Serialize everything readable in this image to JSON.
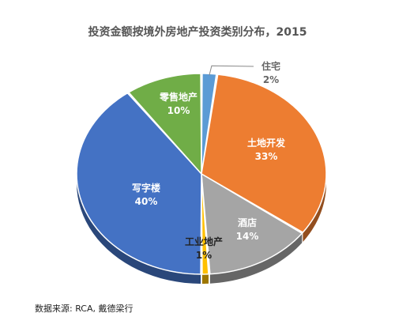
{
  "chart_data": {
    "type": "pie",
    "title": "投资金额按境外房地产投资类别分布，2015",
    "source": "数据来源: RCA, 戴德梁行",
    "slices": [
      {
        "label": "住宅",
        "value": 2,
        "value_label": "2%",
        "color": "#5b9bd5"
      },
      {
        "label": "土地开发",
        "value": 33,
        "value_label": "33%",
        "color": "#ed7d31"
      },
      {
        "label": "酒店",
        "value": 14,
        "value_label": "14%",
        "color": "#a5a5a5"
      },
      {
        "label": "工业地产",
        "value": 1,
        "value_label": "1%",
        "color": "#ffc000"
      },
      {
        "label": "写字楼",
        "value": 40,
        "value_label": "40%",
        "color": "#4472c4"
      },
      {
        "label": "零售地产",
        "value": 10,
        "value_label": "10%",
        "color": "#70ad47"
      }
    ],
    "legend": "none",
    "style": "3d-tilted"
  }
}
